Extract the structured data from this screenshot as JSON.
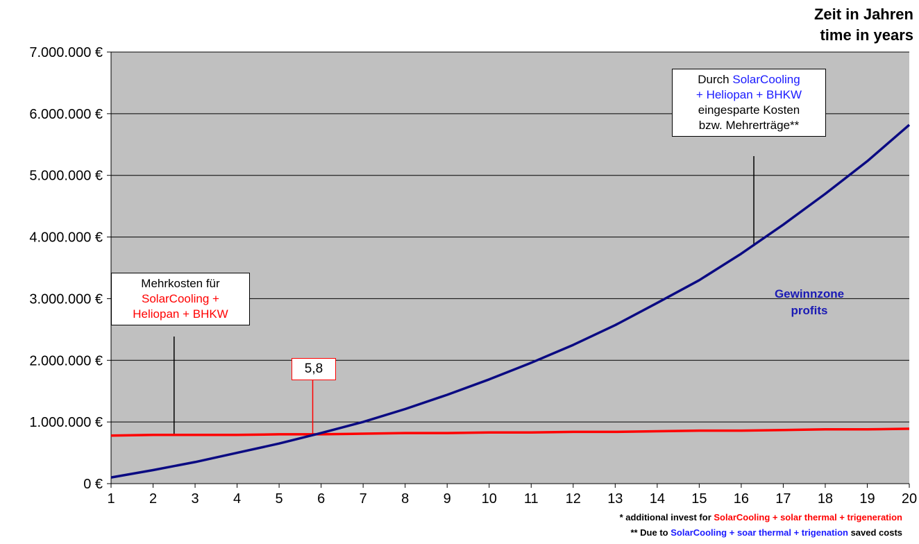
{
  "chart_data": {
    "type": "line",
    "x_title_de": "Zeit in Jahren",
    "x_title_en": "time in years",
    "x": [
      1,
      2,
      3,
      4,
      5,
      6,
      7,
      8,
      9,
      10,
      11,
      12,
      13,
      14,
      15,
      16,
      17,
      18,
      19,
      20
    ],
    "ylim": [
      0,
      7000000
    ],
    "y_ticks": [
      "0 €",
      "1.000.000 €",
      "2.000.000 €",
      "3.000.000 €",
      "4.000.000 €",
      "5.000.000 €",
      "6.000.000 €",
      "7.000.000 €"
    ],
    "grid": true,
    "series": [
      {
        "color": "#ff0000",
        "values": [
          780000,
          790000,
          790000,
          790000,
          800000,
          800000,
          810000,
          820000,
          820000,
          830000,
          830000,
          840000,
          840000,
          850000,
          860000,
          860000,
          870000,
          880000,
          880000,
          890000
        ]
      },
      {
        "color": "#0a0a82",
        "values": [
          100000,
          220000,
          350000,
          500000,
          650000,
          820000,
          1000000,
          1210000,
          1440000,
          1690000,
          1960000,
          2250000,
          2570000,
          2930000,
          3300000,
          3730000,
          4200000,
          4700000,
          5230000,
          5820000
        ]
      }
    ],
    "break_even": {
      "label": "5,8",
      "x": 5.8
    },
    "callout_cost": {
      "line1": "Mehrkosten für",
      "line2": "SolarCooling +",
      "line3": "Heliopan + BHKW"
    },
    "callout_savings": {
      "l1_prefix": "Durch ",
      "l1_colored": "SolarCooling",
      "l2": "+ Heliopan + BHKW",
      "l3": "eingesparte Kosten",
      "l4": "bzw. Mehrerträge**"
    },
    "zone_label_1": "Gewinnzone",
    "zone_label_2": "profits",
    "footnote_1": {
      "prefix": "*  additional invest for ",
      "colored": "SolarCooling + solar thermal + trigeneration",
      "suffix": ""
    },
    "footnote_2": {
      "prefix": "**  Due to ",
      "colored": "SolarCooling + soar thermal + trigenation",
      "suffix": " saved costs"
    },
    "colors": {
      "plot_bg": "#c0c0c0",
      "red": "#ff0000",
      "blue": "#0a0a82",
      "accent_blue": "#1a1aff"
    }
  }
}
